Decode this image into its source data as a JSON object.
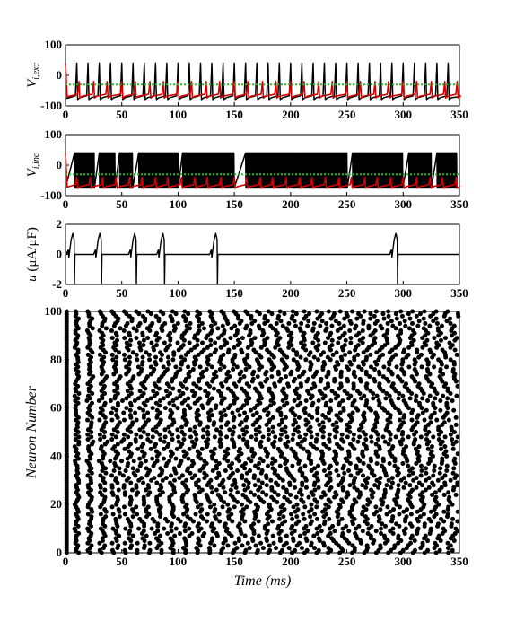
{
  "colors": {
    "black": "#000000",
    "red": "#d40000",
    "green": "#22bb22",
    "spike_dots": "#000000"
  },
  "chart_data": [
    {
      "type": "line",
      "ylabel": "V_{i,exc}",
      "ylabel_main": "V",
      "ylabel_sub": "i,exc",
      "xlim": [
        0,
        350
      ],
      "ylim": [
        -100,
        100
      ],
      "xticks": [
        "0",
        "50",
        "100",
        "150",
        "200",
        "250",
        "300",
        "350"
      ],
      "yticks": [
        "100",
        "0",
        "-100"
      ],
      "series": [
        {
          "color": "black",
          "spike_times": [
            10,
            20,
            30,
            40,
            50,
            60,
            70,
            80,
            90,
            100,
            110,
            120,
            130,
            140,
            150,
            160,
            170,
            180,
            190,
            200,
            210,
            220,
            230,
            240,
            250,
            260,
            270,
            280,
            290,
            300,
            310,
            320,
            330,
            340
          ],
          "peak": 40,
          "trough": -75
        },
        {
          "color": "red",
          "spike_times": [
            12,
            25,
            37,
            50,
            62,
            75,
            87,
            100,
            112,
            125,
            137,
            150,
            162,
            175,
            187,
            200,
            212,
            225,
            237,
            250,
            262,
            275,
            287,
            300,
            312,
            325,
            337,
            348
          ],
          "peak": -20,
          "trough": -70
        },
        {
          "color": "green",
          "style": "dotted",
          "constant": -30
        }
      ]
    },
    {
      "type": "line",
      "ylabel": "V_{i,inc}",
      "ylabel_main": "V",
      "ylabel_sub": "i,inc",
      "xlim": [
        0,
        350
      ],
      "ylim": [
        -100,
        100
      ],
      "xticks": [
        "0",
        "50",
        "100",
        "150",
        "200",
        "250",
        "300",
        "350"
      ],
      "yticks": [
        "100",
        "0",
        "-100"
      ],
      "series": [
        {
          "color": "black",
          "burst_intervals": [
            [
              8,
              26
            ],
            [
              30,
              44
            ],
            [
              48,
              60
            ],
            [
              65,
              100
            ],
            [
              104,
              150
            ],
            [
              160,
              250
            ],
            [
              255,
              300
            ],
            [
              305,
              325
            ],
            [
              330,
              348
            ]
          ],
          "peak": 40,
          "trough": -75
        },
        {
          "color": "red",
          "spike_times": [
            10,
            22,
            33,
            45,
            57,
            68,
            80,
            91,
            103,
            115,
            126,
            138,
            150,
            161,
            173,
            184,
            196,
            208,
            219,
            231,
            243,
            254,
            266,
            277,
            289,
            300,
            312,
            324,
            335,
            347
          ],
          "peak": -40,
          "trough": -72
        },
        {
          "color": "green",
          "style": "dotted",
          "constant": -30
        }
      ]
    },
    {
      "type": "line",
      "ylabel": "u (μA/μF)",
      "ylabel_main": "u",
      "ylabel_units": "(μA/μF)",
      "xlim": [
        0,
        350
      ],
      "ylim": [
        -2,
        2
      ],
      "xticks": [
        "0",
        "50",
        "100",
        "150",
        "200",
        "250",
        "300",
        "350"
      ],
      "yticks": [
        "2",
        "0",
        "-2"
      ],
      "series": [
        {
          "color": "black",
          "pulse_times": [
            8,
            32,
            63,
            88,
            135,
            295
          ],
          "pulse_amplitude": 1.4
        }
      ]
    },
    {
      "type": "scatter",
      "xlabel": "Time (ms)",
      "ylabel": "Neuron Number",
      "xlim": [
        0,
        350
      ],
      "ylim": [
        0,
        100
      ],
      "xticks": [
        "0",
        "50",
        "100",
        "150",
        "200",
        "250",
        "300",
        "350"
      ],
      "yticks": [
        "100",
        "80",
        "60",
        "40",
        "20",
        "0"
      ],
      "neurons": 100,
      "first_spike_time": 1,
      "mean_period_ms": 11.5,
      "period_spread_ms": 2.0,
      "rng_seed": 7,
      "marker_color": "black"
    }
  ]
}
